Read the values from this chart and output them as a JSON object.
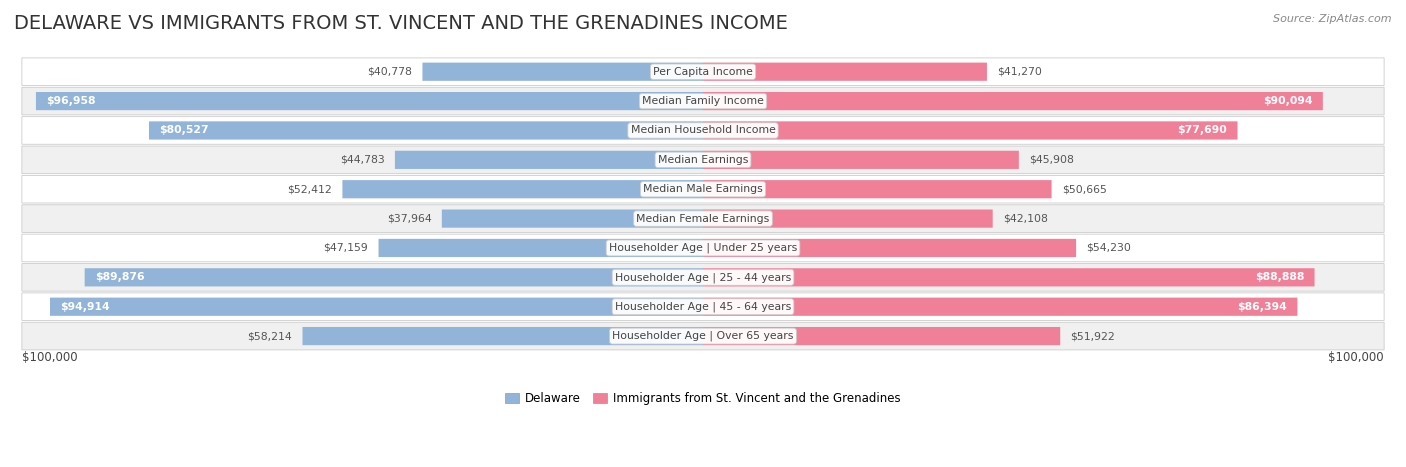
{
  "title": "DELAWARE VS IMMIGRANTS FROM ST. VINCENT AND THE GRENADINES INCOME",
  "source": "Source: ZipAtlas.com",
  "categories": [
    "Per Capita Income",
    "Median Family Income",
    "Median Household Income",
    "Median Earnings",
    "Median Male Earnings",
    "Median Female Earnings",
    "Householder Age | Under 25 years",
    "Householder Age | 25 - 44 years",
    "Householder Age | 45 - 64 years",
    "Householder Age | Over 65 years"
  ],
  "delaware_values": [
    40778,
    96958,
    80527,
    44783,
    52412,
    37964,
    47159,
    89876,
    94914,
    58214
  ],
  "immigrant_values": [
    41270,
    90094,
    77690,
    45908,
    50665,
    42108,
    54230,
    88888,
    86394,
    51922
  ],
  "delaware_labels": [
    "$40,778",
    "$96,958",
    "$80,527",
    "$44,783",
    "$52,412",
    "$37,964",
    "$47,159",
    "$89,876",
    "$94,914",
    "$58,214"
  ],
  "immigrant_labels": [
    "$41,270",
    "$90,094",
    "$77,690",
    "$45,908",
    "$50,665",
    "$42,108",
    "$54,230",
    "$88,888",
    "$86,394",
    "$51,922"
  ],
  "max_value": 100000,
  "delaware_color": "#92b4d8",
  "immigrant_color": "#f08098",
  "background_color": "#ffffff",
  "row_even_color": "#ffffff",
  "row_odd_color": "#f0f0f0",
  "row_border_color": "#cccccc",
  "label_box_color": "#ffffff",
  "label_box_border": "#cccccc",
  "title_fontsize": 14,
  "legend_delaware": "Delaware",
  "legend_immigrant": "Immigrants from St. Vincent and the Grenadines",
  "xlabel_left": "$100,000",
  "xlabel_right": "$100,000",
  "bar_height": 0.62,
  "inside_label_threshold": 65000
}
